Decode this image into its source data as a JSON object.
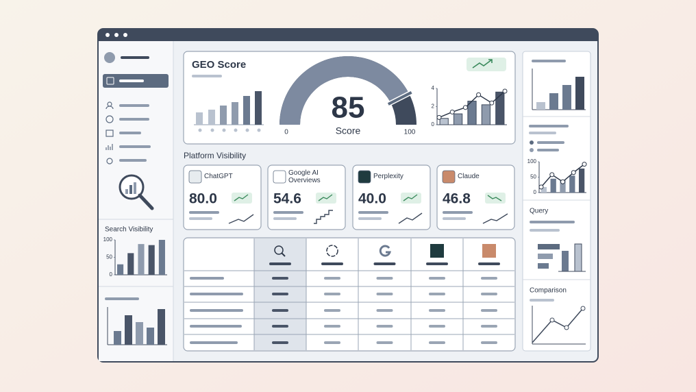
{
  "sidebar": {
    "search_visibility": {
      "title": "Search Visibility",
      "ylim": [
        0,
        100
      ],
      "yticks": [
        0,
        50,
        100
      ],
      "values": [
        30,
        62,
        88,
        85,
        100
      ]
    }
  },
  "geo_score": {
    "title": "GEO Score",
    "gauge": {
      "value": 85,
      "label": "Score",
      "min": 0,
      "max": 100
    },
    "trend": {
      "ylim": [
        0,
        4
      ],
      "yticks": [
        0,
        2,
        4
      ],
      "bars": [
        0.7,
        1.2,
        2.6,
        2.2,
        3.6
      ],
      "line": [
        0.8,
        1.4,
        1.9,
        3.3,
        2.4,
        3.7
      ]
    }
  },
  "platform_visibility": {
    "title": "Platform Visibility",
    "cards": [
      {
        "name": "ChatGPT",
        "score": "80.0"
      },
      {
        "name": "Google AI Overviews",
        "score": "54.6"
      },
      {
        "name": "Perplexity",
        "score": "40.0"
      },
      {
        "name": "Claude",
        "score": "46.8"
      }
    ]
  },
  "right_panel": {
    "chart": {
      "ylim": [
        0,
        100
      ],
      "yticks": [
        0,
        50,
        100
      ],
      "bars": [
        18,
        45,
        40,
        55,
        78
      ],
      "line": [
        18,
        58,
        35,
        65,
        92
      ]
    },
    "query": "Query",
    "comparison": "Comparison"
  }
}
